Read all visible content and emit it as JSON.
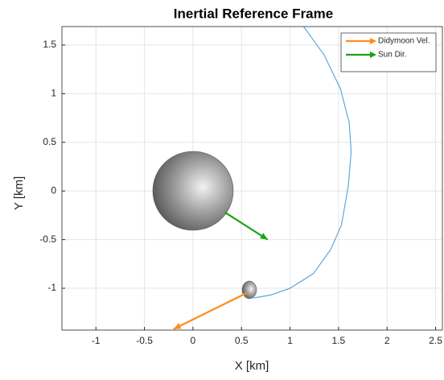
{
  "chart_data": {
    "type": "line",
    "title": "Inertial Reference Frame",
    "x_label": "X [km]",
    "y_label": "Y [km]",
    "xlim": [
      -1.35,
      2.57
    ],
    "ylim": [
      -1.43,
      1.69
    ],
    "xticks": [
      -1,
      -0.5,
      0,
      0.5,
      1,
      1.5,
      2,
      2.5
    ],
    "yticks": [
      -1,
      -0.5,
      0,
      0.5,
      1,
      1.5
    ],
    "grid": true,
    "legend": "top-right",
    "orbit": {
      "color": "#5fa8dd",
      "x": [
        1.14,
        1.35,
        1.52,
        1.61,
        1.63,
        1.6,
        1.53,
        1.42,
        1.24,
        1.0,
        0.8,
        0.62
      ],
      "values": [
        1.69,
        1.4,
        1.05,
        0.7,
        0.4,
        0.05,
        -0.35,
        -0.6,
        -0.85,
        -1.0,
        -1.07,
        -1.1
      ]
    },
    "series": [
      {
        "name": "Didymoon Vel.",
        "color": "#ff8c1a",
        "x": [
          0.55,
          -0.2
        ],
        "values": [
          -1.05,
          -1.42
        ]
      },
      {
        "name": "Sun Dir.",
        "color": "#17a317",
        "x": [
          0.33,
          0.77
        ],
        "values": [
          -0.22,
          -0.5
        ]
      }
    ]
  }
}
